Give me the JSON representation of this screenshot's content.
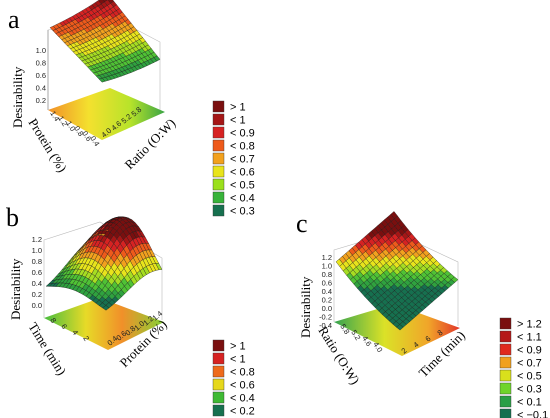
{
  "chart_data": [
    {
      "panel": "a",
      "type": "surface3d",
      "zlabel": "Desirability",
      "xlabel": "Protein (%)",
      "ylabel": "Ratio (O:W)",
      "z_ticks": [
        "1.0",
        "0.8",
        "0.6",
        "0.4",
        "0.2"
      ],
      "x_ticks": [
        "1.4",
        "1.2",
        "1.0",
        "0.8",
        "0.6",
        "0.4"
      ],
      "y_ticks": [
        "4.0",
        "4.6",
        "5.2",
        "5.8"
      ],
      "legend": [
        "> 1",
        "< 1",
        "< 0.9",
        "< 0.8",
        "< 0.7",
        "< 0.6",
        "< 0.5",
        "< 0.4",
        "< 0.3"
      ],
      "legend_colors": [
        "#7a0f0f",
        "#a51616",
        "#d62222",
        "#ee5a1b",
        "#f2a11e",
        "#e8e41c",
        "#9be01c",
        "#38b33a",
        "#16704f"
      ]
    },
    {
      "panel": "b",
      "type": "surface3d",
      "zlabel": "Desirability",
      "xlabel": "Time (min)",
      "ylabel": "Protein (%)",
      "z_ticks": [
        "1.2",
        "1.0",
        "0.8",
        "0.6",
        "0.4",
        "0.2",
        "0.0"
      ],
      "x_ticks": [
        "8",
        "6",
        "4",
        "2"
      ],
      "y_ticks": [
        "0.4",
        "0.6",
        "0.8",
        "1.0",
        "1.2",
        "1.4"
      ],
      "legend": [
        "> 1",
        "< 1",
        "< 0.8",
        "< 0.6",
        "< 0.4",
        "< 0.2"
      ],
      "legend_colors": [
        "#7a0f0f",
        "#d62222",
        "#ee6a1b",
        "#e6d81c",
        "#3fba34",
        "#16704f"
      ]
    },
    {
      "panel": "c",
      "type": "surface3d",
      "zlabel": "Desirability",
      "xlabel": "Ratio (O:W)",
      "ylabel": "Time (min)",
      "z_ticks": [
        "1.2",
        "1.0",
        "0.8",
        "0.6",
        "0.4",
        "0.2",
        "0.0",
        "-0.2",
        "-0.4"
      ],
      "x_ticks": [
        "5.8",
        "5.2",
        "4.6",
        "4.0"
      ],
      "y_ticks": [
        "2",
        "4",
        "6",
        "8"
      ],
      "legend": [
        "> 1.2",
        "< 1.1",
        "< 0.9",
        "< 0.7",
        "< 0.5",
        "< 0.3",
        "< 0.1",
        "< −0.1"
      ],
      "legend_colors": [
        "#7a0f0f",
        "#b51818",
        "#e02a1e",
        "#f0a01e",
        "#d9e01c",
        "#6fd42a",
        "#2a9e46",
        "#16704f"
      ]
    }
  ]
}
